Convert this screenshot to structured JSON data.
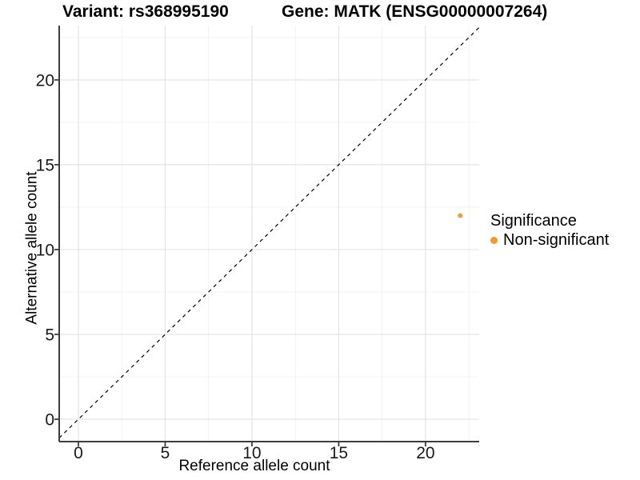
{
  "header": {
    "variant_title": "Variant: rs368995190",
    "gene_title": "Gene: MATK (ENSG00000007264)"
  },
  "axes": {
    "x_label": "Reference allele count",
    "y_label": "Alternative allele count"
  },
  "legend": {
    "title": "Significance",
    "position": "right",
    "items": [
      {
        "label": "Non-significant",
        "color": "#F8982C",
        "marker": "circle-icon"
      }
    ]
  },
  "colors": {
    "background": "#FFFFFF",
    "grid_major": "#E3E3E3",
    "grid_minor": "#EFEFEF",
    "axis_line": "#3D3D3D",
    "identity_line": "#000000",
    "point": "#F8982C",
    "text": "#000000"
  },
  "chart_data": {
    "type": "scatter",
    "title": "Variant: rs368995190 | Gene: MATK (ENSG00000007264)",
    "xlabel": "Reference allele count",
    "ylabel": "Alternative allele count",
    "xlim": [
      -1.106,
      23.094
    ],
    "ylim": [
      -1.32,
      23.2
    ],
    "x_ticks": [
      0,
      5,
      10,
      15,
      20
    ],
    "y_ticks": [
      0,
      5,
      10,
      15,
      20
    ],
    "x_minor_ticks": [
      2.5,
      7.5,
      12.5,
      17.5,
      22.5
    ],
    "y_minor_ticks": [
      2.5,
      7.5,
      12.5,
      17.5,
      22.5
    ],
    "grid": true,
    "legend_position": "right",
    "identity_line": {
      "style": "dashed",
      "slope": 1,
      "intercept": 0
    },
    "series": [
      {
        "name": "Non-significant",
        "color": "#F8982C",
        "point_radius": 3,
        "points": [
          {
            "x": 22,
            "y": 12
          }
        ]
      }
    ]
  }
}
